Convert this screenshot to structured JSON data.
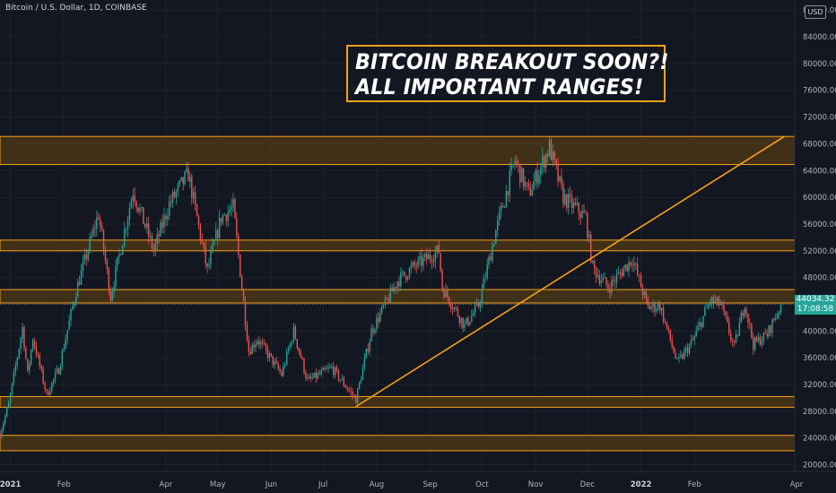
{
  "header": {
    "symbol_title": "Bitcoin / U.S. Dollar, 1D, COINBASE",
    "currency": "USD"
  },
  "annotation": {
    "line1": "BITCOIN BREAKOUT SOON?!",
    "line2": "ALL IMPORTANT RANGES!"
  },
  "price_tag": {
    "price": "44034.32",
    "countdown": "17:08:58"
  },
  "colors": {
    "background": "#131722",
    "up_candle": "#26a69a",
    "down_candle": "#ef5350",
    "zone_fill": "#4a3516",
    "zone_border": "#f7a11a",
    "trendline": "#f7a11a",
    "grid": "#1e222d",
    "axis_text": "#b2b5be"
  },
  "chart_data": {
    "type": "candlestick",
    "title": "Bitcoin / U.S. Dollar, 1D, COINBASE",
    "y_axis": {
      "side": "right",
      "ticks": [
        20000,
        24000,
        28000,
        32000,
        36000,
        40000,
        44000,
        48000,
        52000,
        56000,
        60000,
        64000,
        68000,
        72000,
        76000,
        80000,
        84000,
        88000
      ],
      "tick_labels": [
        "20000.00",
        "24000.00",
        "28000.00",
        "32000.00",
        "36000.00",
        "40000.00",
        "44000.00",
        "48000.00",
        "52000.00",
        "56000.00",
        "60000.00",
        "64000.00",
        "68000.00",
        "72000.00",
        "76000.00",
        "80000.00",
        "84000.00",
        "88000.00"
      ],
      "range": [
        19000,
        89500
      ]
    },
    "x_axis": {
      "range": [
        "2020-12-26",
        "2022-03-31"
      ],
      "ticks": [
        {
          "label": "2021",
          "date": "2021-01-01",
          "bold": true
        },
        {
          "label": "Feb",
          "date": "2021-02-01",
          "bold": false
        },
        {
          "label": "Apr",
          "date": "2021-04-01",
          "bold": false
        },
        {
          "label": "May",
          "date": "2021-05-01",
          "bold": false
        },
        {
          "label": "Jun",
          "date": "2021-06-01",
          "bold": false
        },
        {
          "label": "Jul",
          "date": "2021-07-01",
          "bold": false
        },
        {
          "label": "Aug",
          "date": "2021-08-01",
          "bold": false
        },
        {
          "label": "Sep",
          "date": "2021-09-01",
          "bold": false
        },
        {
          "label": "Oct",
          "date": "2021-10-01",
          "bold": false
        },
        {
          "label": "Nov",
          "date": "2021-11-01",
          "bold": false
        },
        {
          "label": "Dec",
          "date": "2021-12-01",
          "bold": false
        },
        {
          "label": "2022",
          "date": "2022-01-01",
          "bold": true
        },
        {
          "label": "Feb",
          "date": "2022-02-01",
          "bold": false
        },
        {
          "label": "Apr",
          "date": "2022-04-01",
          "bold": false
        }
      ]
    },
    "zones": [
      {
        "low": 64900,
        "high": 69100
      },
      {
        "low": 52000,
        "high": 53600
      },
      {
        "low": 44200,
        "high": 46200
      },
      {
        "low": 28600,
        "high": 30200
      },
      {
        "low": 22100,
        "high": 24400
      }
    ],
    "trendline": {
      "start_date": "2021-07-20",
      "start_price": 28700,
      "end_date": "2022-03-25",
      "end_price": 69100
    },
    "last_price": 44034.32,
    "price_path": [
      {
        "date": "2020-12-26",
        "price": 24700
      },
      {
        "date": "2020-12-31",
        "price": 28900
      },
      {
        "date": "2021-01-08",
        "price": 40500
      },
      {
        "date": "2021-01-11",
        "price": 33500
      },
      {
        "date": "2021-01-14",
        "price": 39000
      },
      {
        "date": "2021-01-22",
        "price": 30500
      },
      {
        "date": "2021-01-29",
        "price": 34300
      },
      {
        "date": "2021-02-08",
        "price": 46000
      },
      {
        "date": "2021-02-21",
        "price": 57500
      },
      {
        "date": "2021-02-28",
        "price": 45200
      },
      {
        "date": "2021-03-13",
        "price": 61000
      },
      {
        "date": "2021-03-25",
        "price": 52000
      },
      {
        "date": "2021-04-03",
        "price": 59000
      },
      {
        "date": "2021-04-14",
        "price": 63500
      },
      {
        "date": "2021-04-25",
        "price": 49000
      },
      {
        "date": "2021-05-03",
        "price": 57000
      },
      {
        "date": "2021-05-10",
        "price": 58500
      },
      {
        "date": "2021-05-19",
        "price": 37000
      },
      {
        "date": "2021-05-24",
        "price": 38800
      },
      {
        "date": "2021-06-07",
        "price": 33500
      },
      {
        "date": "2021-06-14",
        "price": 40000
      },
      {
        "date": "2021-06-22",
        "price": 32500
      },
      {
        "date": "2021-07-06",
        "price": 34500
      },
      {
        "date": "2021-07-20",
        "price": 29800
      },
      {
        "date": "2021-07-29",
        "price": 40000
      },
      {
        "date": "2021-08-13",
        "price": 47500
      },
      {
        "date": "2021-08-22",
        "price": 49500
      },
      {
        "date": "2021-09-06",
        "price": 52000
      },
      {
        "date": "2021-09-08",
        "price": 46500
      },
      {
        "date": "2021-09-21",
        "price": 40800
      },
      {
        "date": "2021-09-29",
        "price": 43800
      },
      {
        "date": "2021-10-09",
        "price": 55000
      },
      {
        "date": "2021-10-20",
        "price": 65500
      },
      {
        "date": "2021-10-28",
        "price": 60500
      },
      {
        "date": "2021-11-09",
        "price": 67500
      },
      {
        "date": "2021-11-17",
        "price": 60000
      },
      {
        "date": "2021-11-30",
        "price": 57000
      },
      {
        "date": "2021-12-04",
        "price": 49500
      },
      {
        "date": "2021-12-13",
        "price": 46500
      },
      {
        "date": "2021-12-27",
        "price": 50800
      },
      {
        "date": "2022-01-05",
        "price": 43500
      },
      {
        "date": "2022-01-12",
        "price": 43800
      },
      {
        "date": "2022-01-22",
        "price": 35200
      },
      {
        "date": "2022-01-31",
        "price": 38500
      },
      {
        "date": "2022-02-10",
        "price": 44500
      },
      {
        "date": "2022-02-16",
        "price": 44000
      },
      {
        "date": "2022-02-24",
        "price": 37500
      },
      {
        "date": "2022-03-02",
        "price": 44300
      },
      {
        "date": "2022-03-07",
        "price": 38000
      },
      {
        "date": "2022-03-15",
        "price": 39500
      },
      {
        "date": "2022-03-23",
        "price": 44034
      }
    ]
  }
}
